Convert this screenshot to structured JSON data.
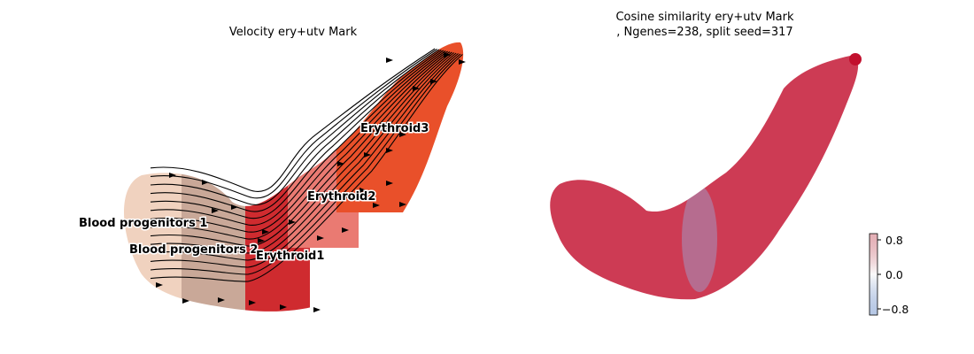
{
  "chart_data": [
    {
      "type": "scatter",
      "subtype": "velocity-stream-embedding",
      "title": "Velocity ery+utv Mark",
      "axes_visible": false,
      "grid": false,
      "stream_color": "#000000",
      "clusters": [
        {
          "name": "Blood progenitors 1",
          "color": "#f0d2bf"
        },
        {
          "name": "Blood progenitors 2",
          "color": "#c9a898"
        },
        {
          "name": "Erythroid1",
          "color": "#cf2b2f"
        },
        {
          "name": "Erythroid2",
          "color": "#ea7a72"
        },
        {
          "name": "Erythroid3",
          "color": "#e9502a"
        }
      ]
    },
    {
      "type": "scatter",
      "subtype": "colored-embedding",
      "title": "Cosine similarity ery+utv Mark",
      "subtitle": ", Ngenes=238, split seed=317",
      "axes_visible": false,
      "grid": false,
      "color_scale": {
        "ticks": [
          0.8,
          0.0,
          -0.8
        ],
        "tick_labels": [
          "0.8",
          "0.0",
          "−0.8"
        ],
        "range": [
          -1,
          1
        ],
        "colors": {
          "high": "#b2182b",
          "mid": "#f7f7f7",
          "low": "#2c5fb3"
        }
      },
      "dominant_value": 0.95
    }
  ]
}
